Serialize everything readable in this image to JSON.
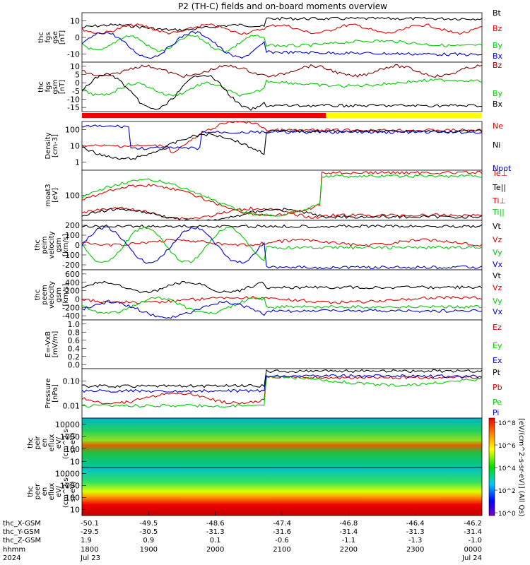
{
  "title": "P2 (TH-C) fields and on-board moments overview",
  "chart_data": {
    "type": "line",
    "title": "P2 (TH-C) fields and on-board moments overview",
    "panels": [
      {
        "ylabel": [
          "thc",
          "fgs",
          "gse",
          "[nT]"
        ],
        "ylim": [
          -20,
          20
        ],
        "ticks": [
          "10",
          "0",
          "-10"
        ],
        "legend": [
          {
            "label": "Bt",
            "color": "#000000"
          },
          {
            "label": "Bz",
            "color": "#dd0000"
          },
          {
            "label": "By",
            "color": "#00cc00"
          },
          {
            "label": "Bx",
            "color": "#0000cc"
          }
        ]
      },
      {
        "ylabel": [
          "thc",
          "fgs",
          "gsm",
          "[nT]"
        ],
        "ylim": [
          -18,
          12
        ],
        "ticks": [
          "10",
          "5",
          "0",
          "-5",
          "-10",
          "-15"
        ],
        "legend": [
          {
            "label": "Bz",
            "color": "#880000"
          },
          {
            "label": "By",
            "color": "#00cc00"
          },
          {
            "label": "Bx",
            "color": "#000000"
          }
        ]
      },
      {
        "ylabel": [
          "Density",
          "[cm-3]"
        ],
        "ylim": [
          0.6,
          100
        ],
        "log": true,
        "ticks": [
          "100",
          "10",
          "1"
        ],
        "legend": [
          {
            "label": "Ne",
            "color": "#dd0000"
          },
          {
            "label": "Ni",
            "color": "#000000"
          },
          {
            "label": "Npot",
            "color": "#0000cc"
          }
        ]
      },
      {
        "ylabel": [
          "moat3",
          "[eV]"
        ],
        "ylim": [
          5,
          2000
        ],
        "log": true,
        "ticks": [
          "100"
        ],
        "legend": [
          {
            "label": "Te⊥",
            "color": "#dd0000"
          },
          {
            "label": "Te||",
            "color": "#000000"
          },
          {
            "label": "Ti⊥",
            "color": "#dd0000"
          },
          {
            "label": "Ti||",
            "color": "#00cc00"
          }
        ]
      },
      {
        "ylabel": [
          "thc",
          "peim",
          "velocity",
          "gsm",
          "[km/s]"
        ],
        "ylim": [
          -280,
          280
        ],
        "ticks": [
          "200",
          "100",
          "0",
          "-100",
          "-200"
        ],
        "legend": [
          {
            "label": "Vt",
            "color": "#000000"
          },
          {
            "label": "Vz",
            "color": "#dd0000"
          },
          {
            "label": "Vy",
            "color": "#00cc00"
          },
          {
            "label": "Vx",
            "color": "#0000cc"
          }
        ]
      },
      {
        "ylabel": [
          "thc",
          "peem",
          "velocity",
          "gsm",
          "[km/s]"
        ],
        "ylim": [
          -550,
          820
        ],
        "ticks": [
          "600",
          "400",
          "200",
          "0",
          "-200",
          "-400"
        ],
        "legend": [
          {
            "label": "Vt",
            "color": "#000000"
          },
          {
            "label": "Vz",
            "color": "#dd0000"
          },
          {
            "label": "Vy",
            "color": "#00cc00"
          },
          {
            "label": "Vx",
            "color": "#0000cc"
          }
        ]
      },
      {
        "ylabel": [
          "E=-VxB",
          "[mV/m]"
        ],
        "ylim": [
          0,
          1
        ],
        "ticks": [
          "1.0",
          "0.8",
          "0.6",
          "0.4",
          "0.2",
          "0.0"
        ],
        "legend": [
          {
            "label": "Ez",
            "color": "#dd0000"
          },
          {
            "label": "Ey",
            "color": "#00cc00"
          },
          {
            "label": "Ex",
            "color": "#0000cc"
          }
        ]
      },
      {
        "ylabel": [
          "Pressure",
          "[nPa]"
        ],
        "ylim": [
          0.006,
          0.4
        ],
        "log": true,
        "ticks": [
          "0.10",
          "0.01"
        ],
        "legend": [
          {
            "label": "Pt",
            "color": "#000000"
          },
          {
            "label": "Pb",
            "color": "#dd0000"
          },
          {
            "label": "Pe",
            "color": "#00cc00"
          },
          {
            "label": "Pi",
            "color": "#0000cc"
          }
        ]
      },
      {
        "ylabel": [
          "thc",
          "peir",
          "en",
          "eflux",
          "eV/",
          "(cm^2-s-",
          "sr-eV)"
        ],
        "ylim": [
          5,
          20000
        ],
        "log": true,
        "ticks": [
          "10000",
          "1000",
          "100",
          "10"
        ],
        "spectrogram": true
      },
      {
        "ylabel": [
          "thc",
          "peer",
          "en",
          "eflux",
          "eV/",
          "(cm^2-s-",
          "sr-eV)"
        ],
        "ylim": [
          5,
          20000
        ],
        "log": true,
        "ticks": [
          "10000",
          "1000",
          "100",
          "10"
        ],
        "spectrogram": true
      }
    ],
    "colorbar": {
      "label": "[eV/(cm^2-s-sr-eV)] (All Qs)",
      "ticks": [
        "10^8",
        "10^6",
        "10^4",
        "10^2",
        "10^0"
      ]
    },
    "mode_bar": [
      {
        "color": "#ee0000",
        "from": "1800",
        "to": "2152"
      },
      {
        "color": "#ffff00",
        "from": "2152",
        "to": "0000"
      }
    ],
    "x_axis": {
      "row_labels": [
        "thc_X-GSM",
        "thc_Y-GSM",
        "thc_Z-GSM",
        "hhmm",
        "2024"
      ],
      "columns": [
        {
          "x": "-50.1",
          "y": "-29.5",
          "z": "1.9",
          "hhmm": "1800",
          "date": "Jul 23"
        },
        {
          "x": "-49.5",
          "y": "-30.5",
          "z": "0.9",
          "hhmm": "1900",
          "date": ""
        },
        {
          "x": "-48.6",
          "y": "-31.3",
          "z": "0.1",
          "hhmm": "2000",
          "date": ""
        },
        {
          "x": "-47.4",
          "y": "-31.6",
          "z": "-0.6",
          "hhmm": "2100",
          "date": ""
        },
        {
          "x": "-46.8",
          "y": "-31.4",
          "z": "-1.1",
          "hhmm": "2200",
          "date": ""
        },
        {
          "x": "-46.4",
          "y": "-31.3",
          "z": "-1.3",
          "hhmm": "2300",
          "date": ""
        },
        {
          "x": "-46.2",
          "y": "-31.4",
          "z": "-1.0",
          "hhmm": "0000",
          "date": "Jul 24"
        }
      ]
    }
  }
}
